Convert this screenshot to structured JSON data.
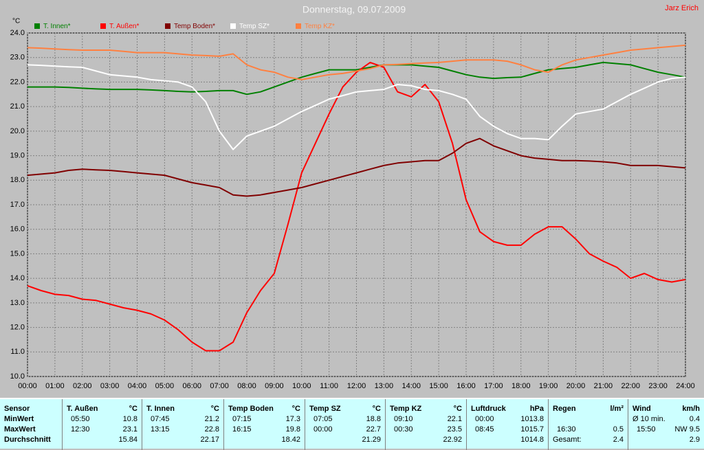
{
  "chart_data": {
    "type": "line",
    "title": "Donnerstag, 09.07.2009",
    "author": "Jarz Erich",
    "y_label": "°C",
    "grid": true,
    "x": [
      0,
      0.5,
      1,
      1.5,
      2,
      2.5,
      3,
      3.5,
      4,
      4.5,
      5,
      5.5,
      6,
      6.5,
      7,
      7.5,
      8,
      8.5,
      9,
      9.5,
      10,
      10.5,
      11,
      11.5,
      12,
      12.5,
      13,
      13.5,
      14,
      14.5,
      15,
      15.5,
      16,
      16.5,
      17,
      17.5,
      18,
      18.5,
      19,
      19.5,
      20,
      20.5,
      21,
      21.5,
      22,
      22.5,
      23,
      23.5,
      24
    ],
    "xlim": [
      0,
      24
    ],
    "xticks": [
      {
        "value": 0,
        "label": "00:00"
      },
      {
        "value": 1,
        "label": "01:00"
      },
      {
        "value": 2,
        "label": "02:00"
      },
      {
        "value": 3,
        "label": "03:00"
      },
      {
        "value": 4,
        "label": "04:00"
      },
      {
        "value": 5,
        "label": "05:00"
      },
      {
        "value": 6,
        "label": "06:00"
      },
      {
        "value": 7,
        "label": "07:00"
      },
      {
        "value": 8,
        "label": "08:00"
      },
      {
        "value": 9,
        "label": "09:00"
      },
      {
        "value": 10,
        "label": "10:00"
      },
      {
        "value": 11,
        "label": "11:00"
      },
      {
        "value": 12,
        "label": "12:00"
      },
      {
        "value": 13,
        "label": "13:00"
      },
      {
        "value": 14,
        "label": "14:00"
      },
      {
        "value": 15,
        "label": "15:00"
      },
      {
        "value": 16,
        "label": "16:00"
      },
      {
        "value": 17,
        "label": "17:00"
      },
      {
        "value": 18,
        "label": "18:00"
      },
      {
        "value": 19,
        "label": "19:00"
      },
      {
        "value": 20,
        "label": "20:00"
      },
      {
        "value": 21,
        "label": "21:00"
      },
      {
        "value": 22,
        "label": "22:00"
      },
      {
        "value": 23,
        "label": "23:00"
      },
      {
        "value": 24,
        "label": "24:00"
      }
    ],
    "ylim": [
      10,
      24
    ],
    "yticks": [
      {
        "value": 10,
        "label": "10.0"
      },
      {
        "value": 11,
        "label": "11.0"
      },
      {
        "value": 12,
        "label": "12.0"
      },
      {
        "value": 13,
        "label": "13.0"
      },
      {
        "value": 14,
        "label": "14.0"
      },
      {
        "value": 15,
        "label": "15.0"
      },
      {
        "value": 16,
        "label": "16.0"
      },
      {
        "value": 17,
        "label": "17.0"
      },
      {
        "value": 18,
        "label": "18.0"
      },
      {
        "value": 19,
        "label": "19.0"
      },
      {
        "value": 20,
        "label": "20.0"
      },
      {
        "value": 21,
        "label": "21.0"
      },
      {
        "value": 22,
        "label": "22.0"
      },
      {
        "value": 23,
        "label": "23.0"
      },
      {
        "value": 24,
        "label": "24.0"
      }
    ],
    "series": [
      {
        "name": "T. Innen*",
        "color": "#008000",
        "values": [
          21.8,
          21.8,
          21.8,
          21.78,
          21.75,
          21.72,
          21.7,
          21.7,
          21.7,
          21.68,
          21.65,
          21.62,
          21.6,
          21.62,
          21.65,
          21.65,
          21.5,
          21.6,
          21.8,
          22.0,
          22.2,
          22.35,
          22.5,
          22.5,
          22.5,
          22.6,
          22.7,
          22.7,
          22.7,
          22.65,
          22.6,
          22.45,
          22.3,
          22.2,
          22.15,
          22.18,
          22.2,
          22.35,
          22.5,
          22.55,
          22.6,
          22.7,
          22.8,
          22.75,
          22.7,
          22.55,
          22.4,
          22.3,
          22.2
        ]
      },
      {
        "name": "T. Außen*",
        "color": "#ff0000",
        "values": [
          13.7,
          13.5,
          13.35,
          13.3,
          13.15,
          13.1,
          12.95,
          12.8,
          12.7,
          12.55,
          12.3,
          11.9,
          11.4,
          11.05,
          11.05,
          11.4,
          12.6,
          13.5,
          14.2,
          16.2,
          18.3,
          19.5,
          20.7,
          21.8,
          22.4,
          22.8,
          22.6,
          21.6,
          21.4,
          21.9,
          21.2,
          19.5,
          17.2,
          15.9,
          15.5,
          15.35,
          15.35,
          15.8,
          16.1,
          16.1,
          15.6,
          15.0,
          14.7,
          14.45,
          14.0,
          14.2,
          13.95,
          13.85,
          13.95
        ]
      },
      {
        "name": "Temp Boden*",
        "color": "#800000",
        "values": [
          18.2,
          18.25,
          18.3,
          18.4,
          18.45,
          18.42,
          18.4,
          18.35,
          18.3,
          18.25,
          18.2,
          18.05,
          17.9,
          17.8,
          17.7,
          17.4,
          17.35,
          17.4,
          17.5,
          17.6,
          17.7,
          17.85,
          18.0,
          18.15,
          18.3,
          18.45,
          18.6,
          18.7,
          18.75,
          18.8,
          18.8,
          19.1,
          19.5,
          19.7,
          19.4,
          19.2,
          19.0,
          18.9,
          18.85,
          18.8,
          18.8,
          18.78,
          18.75,
          18.7,
          18.6,
          18.6,
          18.6,
          18.55,
          18.5
        ]
      },
      {
        "name": "Temp SZ*",
        "color": "#ffffff",
        "values": [
          22.7,
          22.68,
          22.65,
          22.62,
          22.6,
          22.45,
          22.3,
          22.25,
          22.2,
          22.1,
          22.05,
          22.0,
          21.8,
          21.2,
          20.0,
          19.25,
          19.8,
          20.0,
          20.2,
          20.5,
          20.8,
          21.05,
          21.3,
          21.45,
          21.6,
          21.65,
          21.7,
          21.9,
          21.85,
          21.7,
          21.65,
          21.5,
          21.3,
          20.6,
          20.2,
          19.9,
          19.7,
          19.7,
          19.65,
          20.2,
          20.7,
          20.8,
          20.9,
          21.2,
          21.5,
          21.75,
          22.0,
          22.15,
          22.2
        ]
      },
      {
        "name": "Temp KZ*",
        "color": "#ff8040",
        "values": [
          23.4,
          23.38,
          23.35,
          23.32,
          23.3,
          23.3,
          23.3,
          23.25,
          23.2,
          23.2,
          23.2,
          23.15,
          23.1,
          23.08,
          23.05,
          23.15,
          22.7,
          22.5,
          22.4,
          22.2,
          22.1,
          22.2,
          22.3,
          22.35,
          22.45,
          22.55,
          22.7,
          22.72,
          22.75,
          22.78,
          22.8,
          22.85,
          22.9,
          22.9,
          22.9,
          22.85,
          22.7,
          22.5,
          22.4,
          22.7,
          22.9,
          23.0,
          23.1,
          23.2,
          23.3,
          23.35,
          23.4,
          23.45,
          23.5
        ]
      }
    ]
  },
  "table": {
    "row_labels": [
      "Sensor",
      "MinWert",
      "MaxWert",
      "Durchschnitt"
    ],
    "columns": [
      {
        "name": "T. Außen",
        "unit": "°C",
        "rows": [
          {
            "label": "05:50",
            "value": "10.8"
          },
          {
            "label": "12:30",
            "value": "23.1"
          },
          {
            "value": "15.84"
          }
        ]
      },
      {
        "name": "T. Innen",
        "unit": "°C",
        "rows": [
          {
            "label": "07:45",
            "value": "21.2"
          },
          {
            "label": "13:15",
            "value": "22.8"
          },
          {
            "value": "22.17"
          }
        ]
      },
      {
        "name": "Temp Boden",
        "unit": "°C",
        "rows": [
          {
            "label": "07:15",
            "value": "17.3"
          },
          {
            "label": "16:15",
            "value": "19.8"
          },
          {
            "value": "18.42"
          }
        ]
      },
      {
        "name": "Temp SZ",
        "unit": "°C",
        "rows": [
          {
            "label": "07:05",
            "value": "18.8"
          },
          {
            "label": "00:00",
            "value": "22.7"
          },
          {
            "value": "21.29"
          }
        ]
      },
      {
        "name": "Temp KZ",
        "unit": "°C",
        "rows": [
          {
            "label": "09:10",
            "value": "22.1"
          },
          {
            "label": "00:30",
            "value": "23.5"
          },
          {
            "value": "22.92"
          }
        ]
      },
      {
        "name": "Luftdruck",
        "unit": "hPa",
        "rows": [
          {
            "label": "00:00",
            "value": "1013.8"
          },
          {
            "label": "08:45",
            "value": "1015.7"
          },
          {
            "value": "1014.8"
          }
        ]
      },
      {
        "name": "Regen",
        "unit": "l/m²",
        "rows": [
          {},
          {
            "label": "16:30",
            "value": "0.5"
          },
          {
            "label": "Gesamt:",
            "value": "2.4"
          }
        ]
      },
      {
        "name": "Wind",
        "unit": "km/h",
        "rows": [
          {
            "label": "Ø 10 min.",
            "value": "0.4"
          },
          {
            "label": "15:50",
            "value": "NW 9.5"
          },
          {
            "value": "2.9"
          }
        ]
      }
    ]
  }
}
